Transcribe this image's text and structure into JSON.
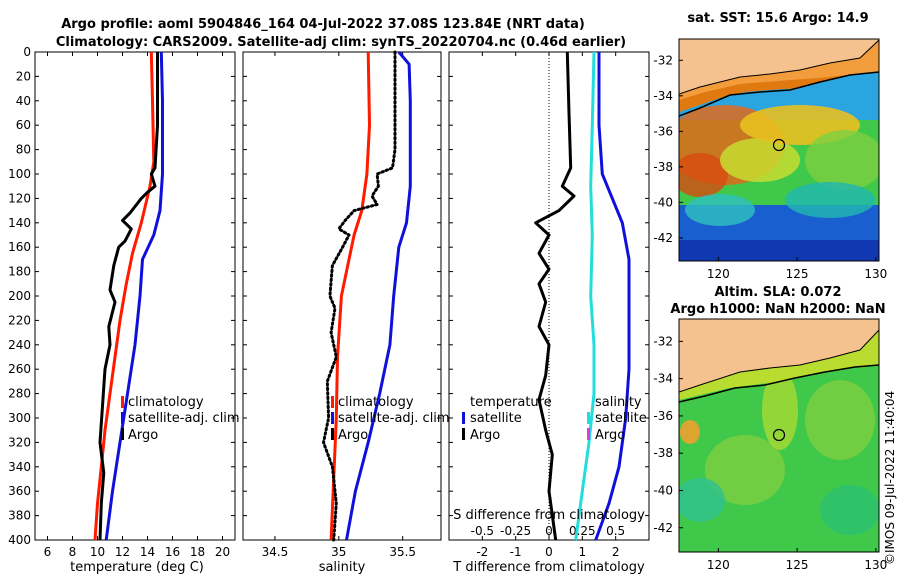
{
  "title_line1": "Argo profile: aoml 5904846_164 04-Jul-2022 37.08S 123.84E (NRT data)",
  "title_line2": "Climatology: CARS2009. Satellite-adj clim: synTS_20220704.nc (0.46d earlier)",
  "credit": "©IMOS 09-Jul-2022 11:40:04",
  "colors": {
    "clim": "#ff1a00",
    "sat": "#1010dd",
    "argo": "#000000",
    "sal_diff": "#22dddd",
    "sal_sat": "#ee33dd",
    "land": "#f5c18f"
  },
  "chart_data": [
    {
      "type": "line",
      "xlabel": "temperature (deg C)",
      "ylabel": "",
      "xlim": [
        5,
        21
      ],
      "ylim": [
        400,
        0
      ],
      "xticks": [
        "6",
        "8",
        "10",
        "12",
        "14",
        "16",
        "18",
        "20"
      ],
      "yticks": [
        "0",
        "20",
        "40",
        "60",
        "80",
        "100",
        "120",
        "140",
        "160",
        "180",
        "200",
        "220",
        "240",
        "260",
        "280",
        "300",
        "320",
        "340",
        "360",
        "380",
        "400"
      ],
      "legend": [
        "climatology",
        "satellite-adj. clim",
        "Argo"
      ],
      "legend_position": "lower-right",
      "series": [
        {
          "name": "climatology",
          "style": "solid",
          "points": [
            [
              14.3,
              0
            ],
            [
              14.4,
              40
            ],
            [
              14.5,
              90
            ],
            [
              14.2,
              110
            ],
            [
              13.5,
              140
            ],
            [
              12.8,
              165
            ],
            [
              12.3,
              190
            ],
            [
              11.8,
              220
            ],
            [
              11.4,
              250
            ],
            [
              11.0,
              280
            ],
            [
              10.6,
              310
            ],
            [
              10.3,
              340
            ],
            [
              10.0,
              370
            ],
            [
              9.8,
              400
            ]
          ]
        },
        {
          "name": "satellite-adj. clim",
          "style": "solid",
          "points": [
            [
              15.1,
              0
            ],
            [
              15.2,
              40
            ],
            [
              15.2,
              100
            ],
            [
              15.0,
              130
            ],
            [
              14.5,
              150
            ],
            [
              13.6,
              170
            ],
            [
              13.4,
              200
            ],
            [
              13.0,
              240
            ],
            [
              12.4,
              280
            ],
            [
              11.8,
              320
            ],
            [
              11.2,
              360
            ],
            [
              10.7,
              400
            ]
          ]
        },
        {
          "name": "Argo",
          "style": "solid",
          "points": [
            [
              14.8,
              0
            ],
            [
              14.8,
              60
            ],
            [
              14.6,
              95
            ],
            [
              14.3,
              100
            ],
            [
              14.6,
              110
            ],
            [
              14.0,
              115
            ],
            [
              13.5,
              120
            ],
            [
              12.6,
              132
            ],
            [
              12.0,
              138
            ],
            [
              12.7,
              145
            ],
            [
              12.2,
              155
            ],
            [
              11.7,
              160
            ],
            [
              11.3,
              175
            ],
            [
              11.0,
              195
            ],
            [
              11.4,
              205
            ],
            [
              10.9,
              225
            ],
            [
              11.0,
              240
            ],
            [
              10.6,
              260
            ],
            [
              10.4,
              290
            ],
            [
              10.2,
              320
            ],
            [
              10.5,
              345
            ],
            [
              10.3,
              370
            ],
            [
              10.2,
              400
            ]
          ]
        }
      ]
    },
    {
      "type": "line",
      "xlabel": "salinity",
      "ylabel": "",
      "xlim": [
        34.25,
        35.8
      ],
      "ylim": [
        400,
        0
      ],
      "xticks": [
        "34.5",
        "35",
        "35.5"
      ],
      "legend": [
        "climatology",
        "satellite-adj. clim",
        "Argo"
      ],
      "legend_position": "lower-right",
      "series": [
        {
          "name": "climatology",
          "style": "solid",
          "points": [
            [
              35.23,
              0
            ],
            [
              35.24,
              60
            ],
            [
              35.22,
              100
            ],
            [
              35.18,
              130
            ],
            [
              35.12,
              150
            ],
            [
              35.08,
              170
            ],
            [
              35.02,
              200
            ],
            [
              34.99,
              250
            ],
            [
              34.98,
              300
            ],
            [
              34.96,
              350
            ],
            [
              34.94,
              400
            ]
          ]
        },
        {
          "name": "satellite-adj. clim",
          "style": "solid",
          "points": [
            [
              35.47,
              0
            ],
            [
              35.55,
              10
            ],
            [
              35.56,
              40
            ],
            [
              35.56,
              80
            ],
            [
              35.56,
              110
            ],
            [
              35.53,
              140
            ],
            [
              35.47,
              160
            ],
            [
              35.43,
              200
            ],
            [
              35.4,
              240
            ],
            [
              35.32,
              280
            ],
            [
              35.23,
              320
            ],
            [
              35.13,
              360
            ],
            [
              35.06,
              400
            ]
          ]
        },
        {
          "name": "Argo",
          "style": "dotted",
          "points": [
            [
              35.44,
              0
            ],
            [
              35.44,
              80
            ],
            [
              35.42,
              95
            ],
            [
              35.3,
              100
            ],
            [
              35.31,
              110
            ],
            [
              35.26,
              118
            ],
            [
              35.3,
              125
            ],
            [
              35.12,
              130
            ],
            [
              35.05,
              138
            ],
            [
              35.0,
              145
            ],
            [
              35.08,
              150
            ],
            [
              35.03,
              160
            ],
            [
              34.95,
              175
            ],
            [
              34.93,
              200
            ],
            [
              34.97,
              210
            ],
            [
              34.94,
              230
            ],
            [
              34.98,
              250
            ],
            [
              34.91,
              270
            ],
            [
              34.92,
              300
            ],
            [
              34.88,
              320
            ],
            [
              34.95,
              340
            ],
            [
              34.98,
              370
            ],
            [
              34.96,
              400
            ]
          ]
        }
      ]
    },
    {
      "type": "line",
      "xlabel": "T difference from climatology",
      "xlabel_top": "S difference from climatology",
      "ylabel": "",
      "xlim": [
        -3,
        3
      ],
      "ylim": [
        400,
        0
      ],
      "xticks": [
        "-2",
        "-1",
        "0",
        "1",
        "2"
      ],
      "xticks_top": [
        "-0.5",
        "-0.25",
        "0",
        "0.25",
        "0.5"
      ],
      "legend_left": [
        "temperature",
        "satellite",
        "Argo"
      ],
      "legend_right": [
        "salinity",
        "satellite",
        "Argo"
      ],
      "series": [
        {
          "name": "salinity difference",
          "style": "solid",
          "points": [
            [
              1.35,
              0
            ],
            [
              1.3,
              60
            ],
            [
              1.25,
              110
            ],
            [
              1.3,
              150
            ],
            [
              1.25,
              200
            ],
            [
              1.35,
              240
            ],
            [
              1.35,
              280
            ],
            [
              1.2,
              320
            ],
            [
              1.0,
              360
            ],
            [
              0.8,
              400
            ]
          ]
        },
        {
          "name": "temperature satellite",
          "style": "solid",
          "points": [
            [
              1.5,
              0
            ],
            [
              1.5,
              60
            ],
            [
              1.6,
              100
            ],
            [
              2.2,
              140
            ],
            [
              2.4,
              170
            ],
            [
              2.4,
              220
            ],
            [
              2.4,
              260
            ],
            [
              2.3,
              300
            ],
            [
              2.1,
              340
            ],
            [
              1.8,
              370
            ],
            [
              1.4,
              400
            ]
          ]
        },
        {
          "name": "temperature Argo",
          "style": "solid",
          "points": [
            [
              0.55,
              0
            ],
            [
              0.6,
              50
            ],
            [
              0.65,
              95
            ],
            [
              0.4,
              110
            ],
            [
              0.75,
              118
            ],
            [
              0.3,
              130
            ],
            [
              -0.4,
              140
            ],
            [
              0.0,
              150
            ],
            [
              -0.3,
              165
            ],
            [
              0.0,
              178
            ],
            [
              -0.3,
              190
            ],
            [
              -0.1,
              205
            ],
            [
              -0.3,
              225
            ],
            [
              0.0,
              240
            ],
            [
              -0.1,
              265
            ],
            [
              -0.3,
              285
            ],
            [
              -0.1,
              310
            ],
            [
              0.1,
              330
            ],
            [
              0.0,
              360
            ],
            [
              0.2,
              400
            ]
          ]
        }
      ]
    },
    {
      "type": "heatmap",
      "title": "sat. SST: 15.6 Argo: 14.9",
      "xticks": [
        "120",
        "125",
        "130"
      ],
      "yticks": [
        "-32",
        "-34",
        "-36",
        "-38",
        "-40",
        "-42"
      ],
      "xlim": [
        117.5,
        130.2
      ],
      "ylim": [
        -30.8,
        -43.3
      ],
      "marker": [
        123.9,
        -37.1
      ]
    },
    {
      "type": "heatmap",
      "title_line1": "Altim. SLA: 0.072",
      "title_line2": "Argo h1000: NaN h2000: NaN",
      "xticks": [
        "120",
        "125",
        "130"
      ],
      "yticks": [
        "-32",
        "-34",
        "-36",
        "-38",
        "-40",
        "-42"
      ],
      "xlim": [
        117.5,
        130.2
      ],
      "ylim": [
        -30.8,
        -43.3
      ],
      "marker": [
        123.9,
        -37.1
      ]
    }
  ]
}
